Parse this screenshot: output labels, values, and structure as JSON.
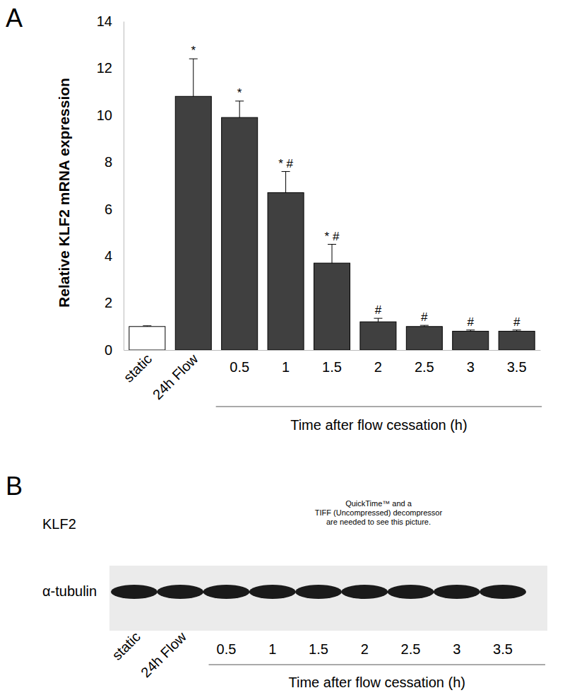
{
  "chart_data": [
    {
      "type": "bar",
      "panel": "A",
      "y_label": "Relative KLF2 mRNA expression",
      "x_label": "Time after flow cessation (h)",
      "categories": [
        "static",
        "24h Flow",
        "0.5",
        "1",
        "1.5",
        "2",
        "2.5",
        "3",
        "3.5"
      ],
      "values": [
        1.0,
        10.8,
        9.9,
        6.7,
        3.7,
        1.2,
        1.0,
        0.8,
        0.8
      ],
      "errors": [
        0.03,
        1.6,
        0.7,
        0.9,
        0.8,
        0.15,
        0.05,
        0.05,
        0.05
      ],
      "annotations": [
        null,
        "*",
        "*",
        "* #",
        "* #",
        "#",
        "#",
        "#",
        "#"
      ],
      "colors": [
        "#ffffff",
        "#404040",
        "#404040",
        "#404040",
        "#404040",
        "#404040",
        "#404040",
        "#404040",
        "#404040"
      ],
      "ylim": [
        0,
        14
      ],
      "yticks": [
        0,
        2,
        4,
        6,
        8,
        10,
        12,
        14
      ]
    },
    {
      "type": "blot",
      "panel": "B",
      "rows": [
        "KLF2",
        "α-tubulin"
      ],
      "lanes": [
        "static",
        "24h Flow",
        "0.5",
        "1",
        "1.5",
        "2",
        "2.5",
        "3",
        "3.5"
      ],
      "x_label": "Time after flow cessation (h)",
      "placeholder": [
        "QuickTime™ and a",
        "TIFF (Uncompressed) decompressor",
        "are needed to see this picture."
      ]
    }
  ]
}
